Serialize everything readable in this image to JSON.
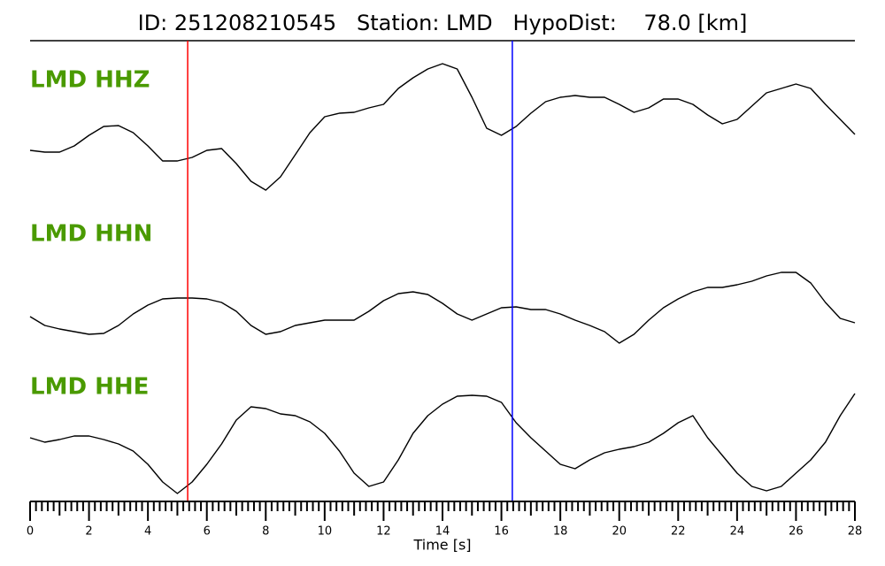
{
  "chart_data": {
    "type": "line",
    "title": "ID: 251208210545   Station: LMD   HypoDist:    78.0 [km]",
    "xlabel": "Time [s]",
    "xlim": [
      0,
      28
    ],
    "xticks": [
      0,
      2,
      4,
      6,
      8,
      10,
      12,
      14,
      16,
      18,
      20,
      22,
      24,
      26,
      28
    ],
    "ylim": [
      0,
      160
    ],
    "label_color": "#4a9a00",
    "x": [
      0,
      0.5,
      1,
      1.5,
      2,
      2.5,
      3,
      3.5,
      4,
      4.5,
      5,
      5.5,
      6,
      6.5,
      7,
      7.5,
      8,
      8.5,
      9,
      9.5,
      10,
      10.5,
      11,
      11.5,
      12,
      12.5,
      13,
      13.5,
      14,
      14.5,
      15,
      15.5,
      16,
      16.5,
      17,
      17.5,
      18,
      18.5,
      19,
      19.5,
      20,
      20.5,
      21,
      21.5,
      22,
      22.5,
      23,
      23.5,
      24,
      24.5,
      25,
      25.5,
      26,
      26.5,
      27,
      27.5,
      28
    ],
    "series": [
      {
        "name": "LMD HHZ",
        "color": "#000000",
        "values": [
          50,
          48,
          48,
          55,
          67,
          77,
          78,
          70,
          55,
          38,
          38,
          42,
          50,
          52,
          35,
          15,
          5,
          20,
          45,
          70,
          88,
          92,
          93,
          98,
          102,
          120,
          132,
          142,
          148,
          142,
          110,
          75,
          67,
          77,
          92,
          105,
          110,
          112,
          110,
          110,
          102,
          93,
          98,
          108,
          108,
          102,
          90,
          80,
          85,
          100,
          115,
          120,
          125,
          120,
          102,
          85,
          68
        ]
      },
      {
        "name": "LMD HHN",
        "color": "#000000",
        "values": [
          42,
          32,
          28,
          25,
          22,
          23,
          32,
          45,
          55,
          62,
          63,
          63,
          62,
          58,
          48,
          32,
          22,
          25,
          32,
          35,
          38,
          38,
          38,
          48,
          60,
          68,
          70,
          67,
          57,
          45,
          38,
          45,
          52,
          53,
          50,
          50,
          45,
          38,
          32,
          25,
          12,
          22,
          38,
          52,
          62,
          70,
          75,
          75,
          78,
          82,
          88,
          92,
          92,
          80,
          58,
          40,
          35
        ]
      },
      {
        "name": "LMD HHE",
        "color": "#000000",
        "values": [
          75,
          70,
          73,
          77,
          77,
          73,
          68,
          60,
          45,
          25,
          12,
          25,
          45,
          68,
          95,
          110,
          108,
          102,
          100,
          93,
          80,
          60,
          35,
          20,
          25,
          50,
          80,
          100,
          113,
          122,
          123,
          122,
          115,
          92,
          75,
          60,
          45,
          40,
          50,
          58,
          62,
          65,
          70,
          80,
          92,
          100,
          75,
          55,
          35,
          20,
          15,
          20,
          35,
          50,
          70,
          100,
          125
        ]
      }
    ],
    "picks": [
      {
        "time": 5.35,
        "color": "#ff0000"
      },
      {
        "time": 16.37,
        "color": "#0000ff"
      }
    ]
  }
}
